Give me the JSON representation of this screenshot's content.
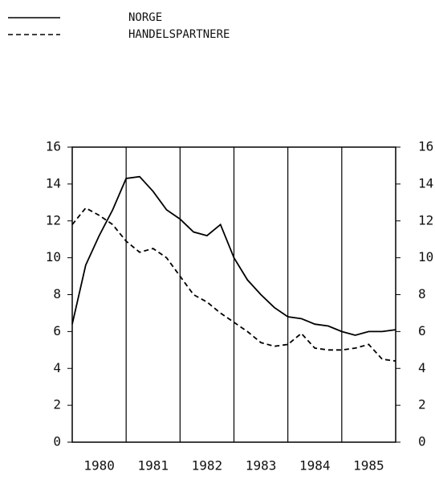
{
  "chart_data": {
    "type": "line",
    "x": [
      1980.0,
      1980.25,
      1980.5,
      1980.75,
      1981.0,
      1981.25,
      1981.5,
      1981.75,
      1982.0,
      1982.25,
      1982.5,
      1982.75,
      1983.0,
      1983.25,
      1983.5,
      1983.75,
      1984.0,
      1984.25,
      1984.5,
      1984.75,
      1985.0,
      1985.25,
      1985.5,
      1985.75,
      1986.0
    ],
    "series": [
      {
        "name": "NORGE",
        "color": "#000000",
        "dash": "solid",
        "values": [
          6.4,
          9.6,
          11.2,
          12.6,
          14.3,
          14.4,
          13.6,
          12.6,
          12.1,
          11.4,
          11.2,
          11.8,
          10.0,
          8.8,
          8.0,
          7.3,
          6.8,
          6.7,
          6.4,
          6.3,
          6.0,
          5.8,
          6.0,
          6.0,
          6.1
        ]
      },
      {
        "name": "HANDELSPARTNERE",
        "color": "#000000",
        "dash": "dashed",
        "values": [
          11.8,
          12.7,
          12.3,
          11.8,
          10.9,
          10.3,
          10.5,
          10.0,
          9.0,
          8.0,
          7.6,
          7.0,
          6.5,
          6.0,
          5.4,
          5.2,
          5.3,
          5.9,
          5.1,
          5.0,
          5.0,
          5.1,
          5.3,
          4.5,
          4.4
        ]
      }
    ],
    "xlim": [
      1980,
      1986
    ],
    "xticks": [
      {
        "value": 1980.5,
        "label": "1980"
      },
      {
        "value": 1981.5,
        "label": "1981"
      },
      {
        "value": 1982.5,
        "label": "1982"
      },
      {
        "value": 1983.5,
        "label": "1983"
      },
      {
        "value": 1984.5,
        "label": "1984"
      },
      {
        "value": 1985.5,
        "label": "1985"
      }
    ],
    "xgrid": [
      1981,
      1982,
      1983,
      1984,
      1985
    ],
    "ylim": [
      0,
      16
    ],
    "yticks": [
      0,
      2,
      4,
      6,
      8,
      10,
      12,
      14,
      16
    ],
    "y2lim": [
      0,
      16
    ],
    "y2ticks": [
      0,
      2,
      4,
      6,
      8,
      10,
      12,
      14,
      16
    ],
    "legend": "top-left"
  }
}
